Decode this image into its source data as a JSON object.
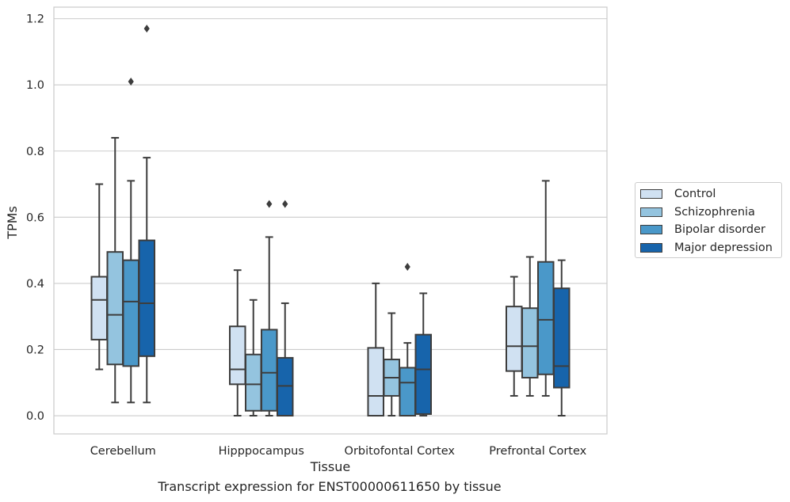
{
  "chart_data": {
    "type": "boxplot",
    "caption": "Transcript expression for ENST00000611650 by tissue",
    "xlabel": "Tissue",
    "ylabel": "TPMs",
    "ylim": [
      -0.055,
      1.235
    ],
    "yticks": [
      0.0,
      0.2,
      0.4,
      0.6,
      0.8,
      1.0,
      1.2
    ],
    "ytick_labels": [
      "0.0",
      "0.2",
      "0.4",
      "0.6",
      "0.8",
      "1.0",
      "1.2"
    ],
    "grid": "horizontal",
    "legend_position": "right",
    "categories": [
      "Cerebellum",
      "Hipppocampus",
      "Orbitofontal Cortex",
      "Prefrontal Cortex"
    ],
    "series": [
      {
        "name": "Control",
        "color": "#d0e1f2",
        "boxes": [
          {
            "whislo": 0.14,
            "q1": 0.23,
            "med": 0.35,
            "q3": 0.42,
            "whishi": 0.7,
            "fliers": []
          },
          {
            "whislo": 0.0,
            "q1": 0.095,
            "med": 0.14,
            "q3": 0.27,
            "whishi": 0.44,
            "fliers": []
          },
          {
            "whislo": 0.0,
            "q1": 0.0,
            "med": 0.06,
            "q3": 0.205,
            "whishi": 0.4,
            "fliers": []
          },
          {
            "whislo": 0.06,
            "q1": 0.135,
            "med": 0.21,
            "q3": 0.33,
            "whishi": 0.42,
            "fliers": []
          }
        ]
      },
      {
        "name": "Schizophrenia",
        "color": "#94c4df",
        "boxes": [
          {
            "whislo": 0.04,
            "q1": 0.155,
            "med": 0.305,
            "q3": 0.495,
            "whishi": 0.84,
            "fliers": []
          },
          {
            "whislo": 0.0,
            "q1": 0.015,
            "med": 0.095,
            "q3": 0.185,
            "whishi": 0.35,
            "fliers": []
          },
          {
            "whislo": 0.0,
            "q1": 0.06,
            "med": 0.115,
            "q3": 0.17,
            "whishi": 0.31,
            "fliers": []
          },
          {
            "whislo": 0.06,
            "q1": 0.115,
            "med": 0.21,
            "q3": 0.325,
            "whishi": 0.48,
            "fliers": []
          }
        ]
      },
      {
        "name": "Bipolar disorder",
        "color": "#4a98c9",
        "boxes": [
          {
            "whislo": 0.04,
            "q1": 0.15,
            "med": 0.345,
            "q3": 0.47,
            "whishi": 0.71,
            "fliers": [
              1.01
            ]
          },
          {
            "whislo": 0.0,
            "q1": 0.015,
            "med": 0.13,
            "q3": 0.26,
            "whishi": 0.54,
            "fliers": [
              0.64
            ]
          },
          {
            "whislo": 0.0,
            "q1": 0.0,
            "med": 0.1,
            "q3": 0.145,
            "whishi": 0.22,
            "fliers": [
              0.45
            ]
          },
          {
            "whislo": 0.06,
            "q1": 0.125,
            "med": 0.29,
            "q3": 0.465,
            "whishi": 0.71,
            "fliers": []
          }
        ]
      },
      {
        "name": "Major depression",
        "color": "#1764ab",
        "boxes": [
          {
            "whislo": 0.04,
            "q1": 0.18,
            "med": 0.34,
            "q3": 0.53,
            "whishi": 0.78,
            "fliers": [
              1.17
            ]
          },
          {
            "whislo": 0.0,
            "q1": 0.0,
            "med": 0.09,
            "q3": 0.175,
            "whishi": 0.34,
            "fliers": [
              0.64
            ]
          },
          {
            "whislo": 0.0,
            "q1": 0.005,
            "med": 0.14,
            "q3": 0.245,
            "whishi": 0.37,
            "fliers": []
          },
          {
            "whislo": 0.0,
            "q1": 0.085,
            "med": 0.15,
            "q3": 0.385,
            "whishi": 0.47,
            "fliers": []
          }
        ]
      }
    ]
  }
}
